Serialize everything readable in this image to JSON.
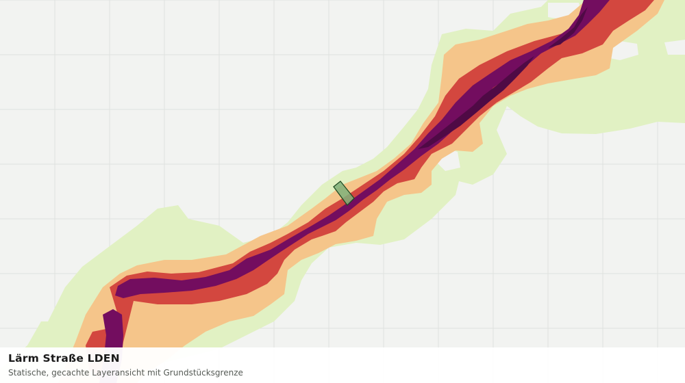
{
  "map": {
    "layer": "noise-road-lden",
    "colors": {
      "background": "#f2f3f1",
      "gridline": "#dfe1de",
      "band_low": "#e1f1c3",
      "band_medium": "#f5c58a",
      "band_high": "#d3473f",
      "band_very_high": "#730d5f",
      "band_extreme": "#4f0a45",
      "parcel_fill": "#7fb07a",
      "parcel_stroke": "#1f4a22"
    },
    "bands": [
      "low",
      "medium",
      "high",
      "very-high",
      "extreme"
    ]
  },
  "caption": {
    "title": "Lärm Straße LDEN",
    "subtitle": "Statische, gecachte Layeransicht mit Grundstücksgrenze"
  }
}
